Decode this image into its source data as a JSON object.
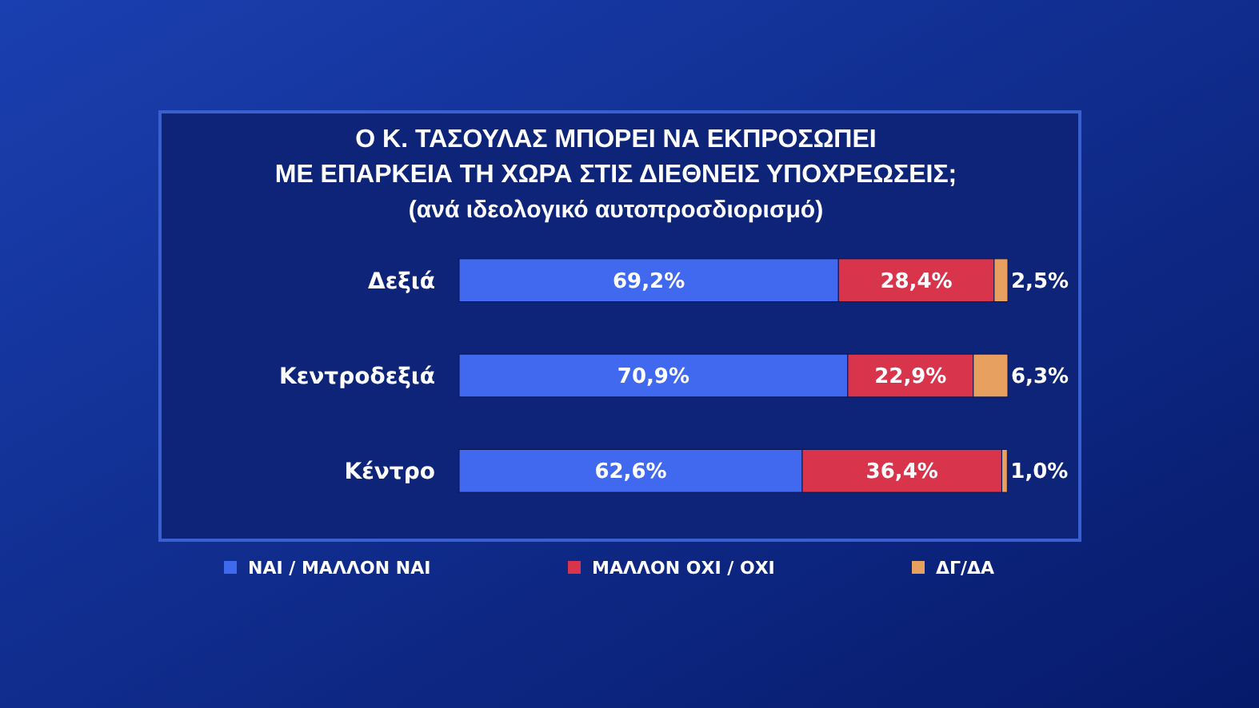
{
  "chart_data": {
    "type": "bar",
    "orientation": "horizontal",
    "stacked": true,
    "title": "Ο Κ. ΤΑΣΟΥΛΑΣ ΜΠΟΡΕΙ ΝΑ ΕΚΠΡΟΣΩΠΕΙ\nΜΕ ΕΠΑΡΚΕΙΑ ΤΗ ΧΩΡΑ ΣΤΙΣ ΔΙΕΘΝΕΙΣ ΥΠΟΧΡΕΩΣΕΙΣ;",
    "subtitle": "(ανά ιδεολογικό αυτοπροσδιορισμό)",
    "categories": [
      "Δεξιά",
      "Κεντροδεξιά",
      "Κέντρο"
    ],
    "series": [
      {
        "name": "ΝΑΙ / ΜΑΛΛΟΝ ΝΑΙ",
        "color": "#4169f0",
        "values": [
          69.2,
          70.9,
          62.6
        ],
        "value_labels": [
          "69,2%",
          "70,9%",
          "62,6%"
        ]
      },
      {
        "name": "ΜΑΛΛΟΝ ΟΧΙ / ΟΧΙ",
        "color": "#d8344c",
        "values": [
          28.4,
          22.9,
          36.4
        ],
        "value_labels": [
          "28,4%",
          "22,9%",
          "36,4%"
        ]
      },
      {
        "name": "ΔΓ/ΔΑ",
        "color": "#e8a060",
        "values": [
          2.5,
          6.3,
          1.0
        ],
        "value_labels": [
          "2,5%",
          "6,3%",
          "1,0%"
        ]
      }
    ],
    "legend": "bottom"
  }
}
